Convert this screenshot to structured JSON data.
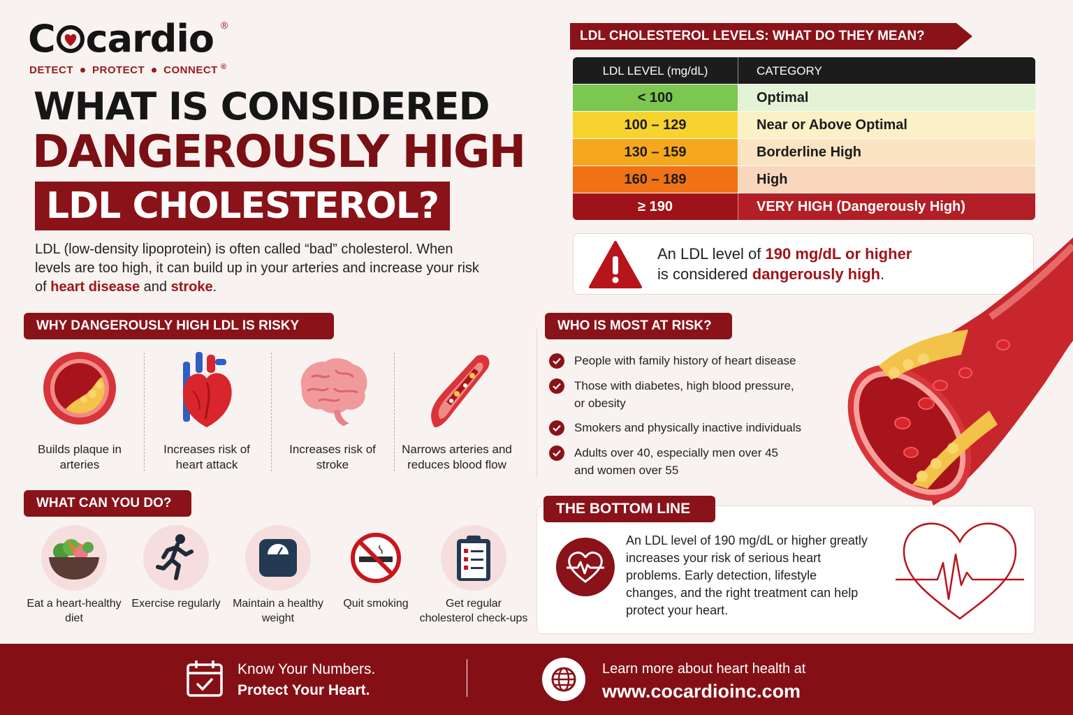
{
  "brand": {
    "name_pre": "C",
    "name_post": "cardio",
    "registered": "®",
    "tagline": [
      "DETECT",
      "PROTECT",
      "CONNECT"
    ]
  },
  "headline": {
    "line1": "WHAT IS CONSIDERED",
    "line2": "DANGEROUSLY HIGH",
    "line3": "LDL CHOLESTEROL?"
  },
  "intro": {
    "part1": "LDL (low-density lipoprotein) is often called “bad” cholesterol. When levels are too high, it can build up in your arteries and increase your risk of ",
    "hl1": "heart disease",
    "part2": " and ",
    "hl2": "stroke",
    "part3": "."
  },
  "why": {
    "title": "WHY DANGEROUSLY HIGH LDL IS RISKY",
    "items": [
      {
        "label": "Builds plaque in arteries",
        "icon": "plaque-artery-icon"
      },
      {
        "label": "Increases risk of heart attack",
        "icon": "heart-icon"
      },
      {
        "label": "Increases risk of stroke",
        "icon": "brain-icon"
      },
      {
        "label": "Narrows arteries and reduces blood flow",
        "icon": "narrow-artery-icon"
      }
    ]
  },
  "actions": {
    "title": "WHAT CAN YOU DO?",
    "items": [
      {
        "label": "Eat a heart-healthy diet",
        "icon": "food-bowl-icon"
      },
      {
        "label": "Exercise regularly",
        "icon": "runner-icon"
      },
      {
        "label": "Maintain a healthy weight",
        "icon": "scale-icon"
      },
      {
        "label": "Quit smoking",
        "icon": "no-smoking-icon"
      },
      {
        "label": "Get regular cholesterol check-ups",
        "icon": "clipboard-icon"
      }
    ]
  },
  "ldl_table": {
    "title": "LDL CHOLESTEROL LEVELS: WHAT DO THEY MEAN?",
    "headers": [
      "LDL LEVEL (mg/dL)",
      "CATEGORY"
    ],
    "rows": [
      {
        "level": "< 100",
        "category": "Optimal",
        "c1": "#7cc750",
        "c2": "#e3f3d6",
        "fg": "#1b1b1b"
      },
      {
        "level": "100 – 129",
        "category": "Near or Above Optimal",
        "c1": "#f7d330",
        "c2": "#fbf0c6",
        "fg": "#1b1b1b"
      },
      {
        "level": "130 – 159",
        "category": "Borderline High",
        "c1": "#f6a81c",
        "c2": "#fbe4c2",
        "fg": "#1b1b1b"
      },
      {
        "level": "160 – 189",
        "category": "High",
        "c1": "#f07214",
        "c2": "#f9d7bd",
        "fg": "#1b1b1b"
      },
      {
        "level": "≥ 190",
        "category": "VERY HIGH (Dangerously High)",
        "c1": "#9e1219",
        "c2": "#b21f26",
        "fg": "#ffffff"
      }
    ]
  },
  "alert": {
    "part1": "An LDL level of ",
    "hl1": "190 mg/dL or higher",
    "part2": "is considered ",
    "hl2": "dangerously high",
    "part3": "."
  },
  "who": {
    "title": "WHO IS MOST AT RISK?",
    "items": [
      [
        "People with family history of heart disease"
      ],
      [
        "Those with diabetes, high blood pressure,",
        "or obesity"
      ],
      [
        "Smokers and physically inactive individuals"
      ],
      [
        "Adults over 40, especially men over 45",
        "and women over 55"
      ]
    ]
  },
  "bottom_line": {
    "title": "THE BOTTOM LINE",
    "text": "An LDL level of 190 mg/dL or higher greatly increases your risk of serious heart problems. Early detection, lifestyle changes, and the right treatment can help protect your heart."
  },
  "footer": {
    "line1": "Know Your Numbers.",
    "line2": "Protect Your Heart.",
    "learn": "Learn more about heart health at",
    "url": "www.cocardioinc.com"
  },
  "colors": {
    "brand_red": "#8a1219",
    "accent_red": "#a0141a"
  }
}
